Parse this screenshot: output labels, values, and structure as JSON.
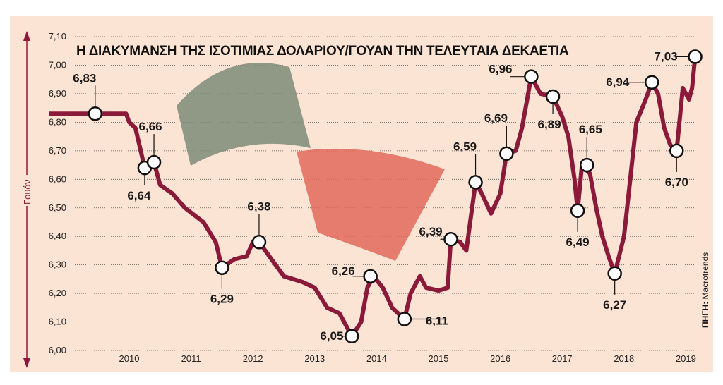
{
  "chart_data": {
    "type": "line",
    "title": "Η ΔΙΑΚΥΜΑΝΣΗ ΤΗΣ ΙΣΟΤΙΜΙΑΣ ΔΟΛΑΡΙΟΥ/ΓΟΥΑΝ ΤΗΝ ΤΕΛΕΥΤΑΙΑ ΔΕΚΑΕΤΙΑ",
    "ylabel": "Γουάν",
    "source_label": "ΠΗΓΗ:",
    "source": "Macrotrends",
    "ylim": [
      6.0,
      7.1
    ],
    "yticks": [
      "6,00",
      "6,10",
      "6,20",
      "6,30",
      "6,40",
      "6,50",
      "6,60",
      "6,70",
      "6,80",
      "6,90",
      "7,00",
      "7,10"
    ],
    "xticks": [
      "2010",
      "2011",
      "2012",
      "2013",
      "2014",
      "2015",
      "2016",
      "2017",
      "2018",
      "2019"
    ],
    "grid": "horizontal-dotted",
    "line_color": "#8b1a3a",
    "background_color": "#fce4d4",
    "series": [
      {
        "x": [
          2008.7,
          2009.95,
          2010.0,
          2010.1,
          2010.25,
          2010.4,
          2010.5,
          2010.7,
          2010.9,
          2011.2,
          2011.4,
          2011.5,
          2011.7,
          2011.9,
          2012.0,
          2012.1,
          2012.3,
          2012.5,
          2012.8,
          2013.0,
          2013.2,
          2013.4,
          2013.6,
          2013.75,
          2013.85,
          2013.95,
          2014.1,
          2014.25,
          2014.45,
          2014.55,
          2014.7,
          2014.8,
          2015.0,
          2015.15,
          2015.2,
          2015.35,
          2015.45,
          2015.6,
          2015.7,
          2015.85,
          2016.0,
          2016.1,
          2016.25,
          2016.35,
          2016.5,
          2016.65,
          2016.85,
          2017.0,
          2017.1,
          2017.2,
          2017.25,
          2017.32,
          2017.45,
          2017.55,
          2017.65,
          2017.75,
          2017.85,
          2018.0,
          2018.1,
          2018.2,
          2018.35,
          2018.45,
          2018.55,
          2018.65,
          2018.75,
          2018.85,
          2018.95,
          2019.05,
          2019.1,
          2019.15
        ],
        "y": [
          6.83,
          6.83,
          6.8,
          6.78,
          6.64,
          6.66,
          6.58,
          6.55,
          6.5,
          6.45,
          6.38,
          6.29,
          6.32,
          6.33,
          6.38,
          6.38,
          6.32,
          6.26,
          6.24,
          6.22,
          6.15,
          6.13,
          6.05,
          6.1,
          6.22,
          6.26,
          6.22,
          6.15,
          6.11,
          6.2,
          6.26,
          6.22,
          6.21,
          6.22,
          6.39,
          6.38,
          6.35,
          6.59,
          6.55,
          6.48,
          6.55,
          6.69,
          6.7,
          6.78,
          6.96,
          6.9,
          6.89,
          6.82,
          6.75,
          6.6,
          6.49,
          6.65,
          6.62,
          6.5,
          6.4,
          6.33,
          6.27,
          6.4,
          6.6,
          6.8,
          6.88,
          6.94,
          6.9,
          6.78,
          6.72,
          6.7,
          6.92,
          6.88,
          6.92,
          7.03
        ]
      }
    ],
    "annotations": [
      {
        "x": 2009.45,
        "y": 6.83,
        "label": "6,83"
      },
      {
        "x": 2010.25,
        "y": 6.64,
        "label": "6,64"
      },
      {
        "x": 2010.4,
        "y": 6.66,
        "label": "6,66"
      },
      {
        "x": 2011.5,
        "y": 6.29,
        "label": "6,29"
      },
      {
        "x": 2012.1,
        "y": 6.38,
        "label": "6,38"
      },
      {
        "x": 2013.6,
        "y": 6.05,
        "label": "6,05"
      },
      {
        "x": 2013.9,
        "y": 6.26,
        "label": "6,26"
      },
      {
        "x": 2014.45,
        "y": 6.11,
        "label": "6,11"
      },
      {
        "x": 2015.2,
        "y": 6.39,
        "label": "6,39"
      },
      {
        "x": 2015.6,
        "y": 6.59,
        "label": "6,59"
      },
      {
        "x": 2016.1,
        "y": 6.69,
        "label": "6,69"
      },
      {
        "x": 2016.5,
        "y": 6.96,
        "label": "6,96"
      },
      {
        "x": 2016.85,
        "y": 6.89,
        "label": "6,89"
      },
      {
        "x": 2017.25,
        "y": 6.49,
        "label": "6,49"
      },
      {
        "x": 2017.4,
        "y": 6.65,
        "label": "6,65"
      },
      {
        "x": 2017.85,
        "y": 6.27,
        "label": "6,27"
      },
      {
        "x": 2018.45,
        "y": 6.94,
        "label": "6,94"
      },
      {
        "x": 2018.85,
        "y": 6.7,
        "label": "6,70"
      },
      {
        "x": 2019.15,
        "y": 7.03,
        "label": "7,03"
      }
    ]
  }
}
